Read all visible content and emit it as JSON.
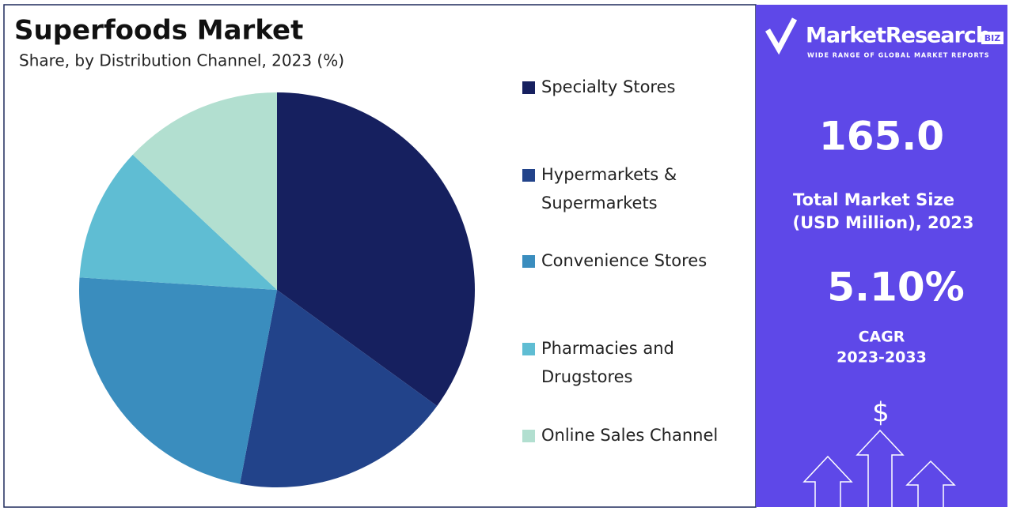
{
  "chart_data": {
    "type": "pie",
    "title": "Superfoods Market",
    "subtitle": "Share, by Distribution Channel, 2023 (%)",
    "categories": [
      "Specialty Stores",
      "Hypermarkets & Supermarkets",
      "Convenience Stores",
      "Pharmacies and Drugstores",
      "Online Sales Channel"
    ],
    "values": [
      35,
      18,
      23,
      11,
      13
    ],
    "colors": [
      "#16205f",
      "#22438a",
      "#3a8dbe",
      "#5fbdd3",
      "#b2dfd0"
    ],
    "legend": "right"
  },
  "sidebar": {
    "brand": "MarketResearch",
    "brand_badge": "BIZ",
    "tagline": "WIDE RANGE OF GLOBAL MARKET REPORTS",
    "market_size": "165.0",
    "market_size_label": [
      "Total Market Size",
      "(USD Million), 2023"
    ],
    "cagr": "5.10%",
    "cagr_label": [
      "CAGR",
      "2023-2033"
    ],
    "currency_symbol": "$"
  }
}
